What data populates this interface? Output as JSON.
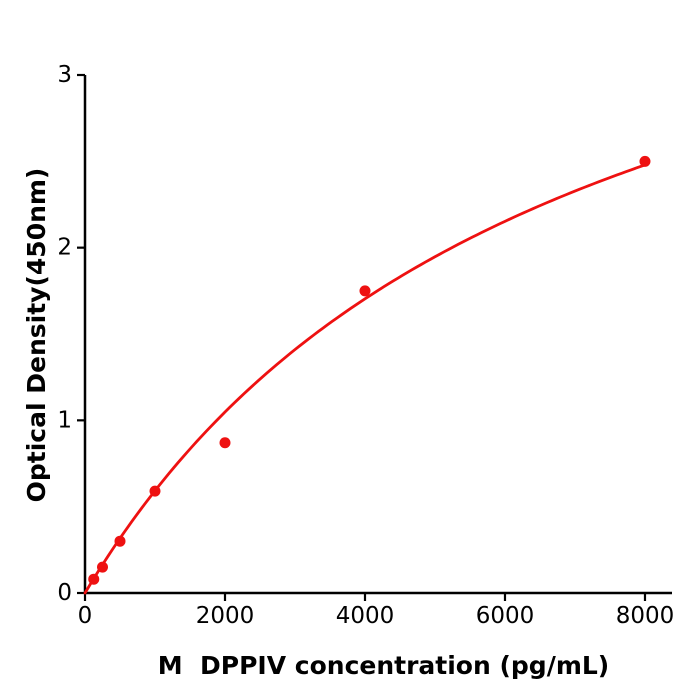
{
  "page": {
    "background_color": "#ffffff"
  },
  "chart_data": {
    "type": "scatter",
    "title": "",
    "xlabel": "M  DPPIV concentration (pg/mL)",
    "ylabel": "Optical Density(450nm)",
    "x_ticks": [
      0,
      2000,
      4000,
      6000,
      8000
    ],
    "x_tick_labels": [
      "0",
      "2000",
      "4000",
      "6000",
      "8000"
    ],
    "y_ticks": [
      0,
      1,
      2,
      3
    ],
    "y_tick_labels": [
      "0",
      "1",
      "2",
      "3"
    ],
    "xlim": [
      0,
      8386
    ],
    "ylim": [
      0,
      3
    ],
    "grid": false,
    "legend": "none",
    "points": [
      {
        "x": 125,
        "y": 0.08
      },
      {
        "x": 250,
        "y": 0.15
      },
      {
        "x": 500,
        "y": 0.3
      },
      {
        "x": 1000,
        "y": 0.59
      },
      {
        "x": 2000,
        "y": 0.87
      },
      {
        "x": 4000,
        "y": 1.75
      },
      {
        "x": 8000,
        "y": 2.5
      }
    ],
    "fit_curve": {
      "model": "y = d * x / (c + x)",
      "d": 4.55,
      "c": 6683,
      "x_start": 0,
      "x_end": 8000
    },
    "marker_color": "#ee1111",
    "line_color": "#ee1111",
    "axis_color": "#000000"
  }
}
